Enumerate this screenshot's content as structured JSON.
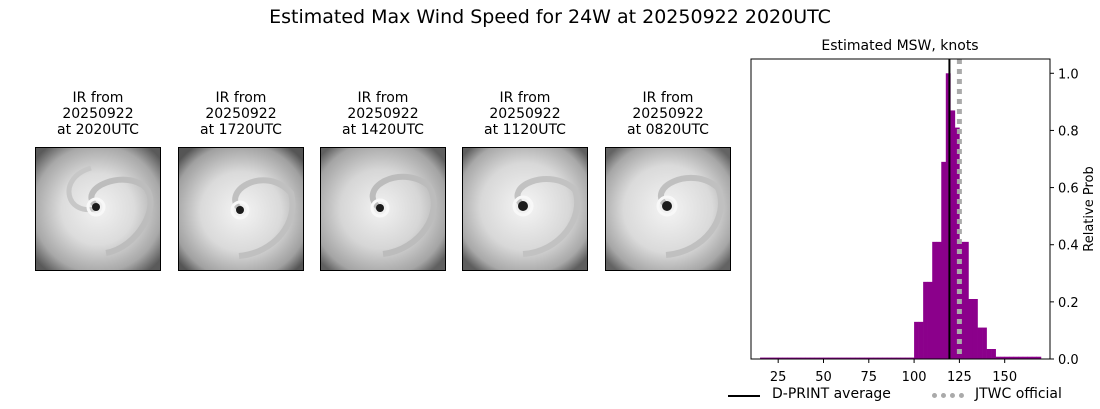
{
  "title": "Estimated Max Wind Speed for 24W at 20250922 2020UTC",
  "panels": [
    {
      "line1": "IR from",
      "line2": "20250922",
      "line3": "at 2020UTC"
    },
    {
      "line1": "IR from",
      "line2": "20250922",
      "line3": "at 1720UTC"
    },
    {
      "line1": "IR from",
      "line2": "20250922",
      "line3": "at 1420UTC"
    },
    {
      "line1": "IR from",
      "line2": "20250922",
      "line3": "at 1120UTC"
    },
    {
      "line1": "IR from",
      "line2": "20250922",
      "line3": "at 0820UTC"
    }
  ],
  "chart_data": {
    "type": "bar",
    "title": "Estimated MSW, knots",
    "xlabel": "",
    "ylabel": "Relative Prob",
    "xlim": [
      10,
      175
    ],
    "ylim": [
      0,
      1.05
    ],
    "xticks": [
      25,
      50,
      75,
      100,
      125,
      150
    ],
    "yticks": [
      0.0,
      0.2,
      0.4,
      0.6,
      0.8,
      1.0
    ],
    "ytick_labels": [
      "0.0",
      "0.2",
      "0.4",
      "0.6",
      "0.8",
      "1.0"
    ],
    "bin_width": 2.5,
    "bins": [
      {
        "x": 15,
        "y": 0.005
      },
      {
        "x": 17.5,
        "y": 0.005
      },
      {
        "x": 20,
        "y": 0.005
      },
      {
        "x": 22.5,
        "y": 0.005
      },
      {
        "x": 25,
        "y": 0.005
      },
      {
        "x": 27.5,
        "y": 0.005
      },
      {
        "x": 30,
        "y": 0.005
      },
      {
        "x": 32.5,
        "y": 0.005
      },
      {
        "x": 35,
        "y": 0.005
      },
      {
        "x": 37.5,
        "y": 0.005
      },
      {
        "x": 40,
        "y": 0.005
      },
      {
        "x": 42.5,
        "y": 0.005
      },
      {
        "x": 45,
        "y": 0.005
      },
      {
        "x": 47.5,
        "y": 0.005
      },
      {
        "x": 50,
        "y": 0.005
      },
      {
        "x": 52.5,
        "y": 0.005
      },
      {
        "x": 55,
        "y": 0.005
      },
      {
        "x": 57.5,
        "y": 0.005
      },
      {
        "x": 60,
        "y": 0.005
      },
      {
        "x": 62.5,
        "y": 0.005
      },
      {
        "x": 65,
        "y": 0.005
      },
      {
        "x": 67.5,
        "y": 0.005
      },
      {
        "x": 70,
        "y": 0.005
      },
      {
        "x": 72.5,
        "y": 0.005
      },
      {
        "x": 75,
        "y": 0.005
      },
      {
        "x": 77.5,
        "y": 0.005
      },
      {
        "x": 80,
        "y": 0.005
      },
      {
        "x": 82.5,
        "y": 0.005
      },
      {
        "x": 85,
        "y": 0.005
      },
      {
        "x": 87.5,
        "y": 0.005
      },
      {
        "x": 90,
        "y": 0.005
      },
      {
        "x": 92.5,
        "y": 0.005
      },
      {
        "x": 95,
        "y": 0.005
      },
      {
        "x": 97.5,
        "y": 0.005
      },
      {
        "x": 100,
        "y": 0.13
      },
      {
        "x": 102.5,
        "y": 0.13
      },
      {
        "x": 105,
        "y": 0.27
      },
      {
        "x": 107.5,
        "y": 0.27
      },
      {
        "x": 110,
        "y": 0.41
      },
      {
        "x": 112.5,
        "y": 0.41
      },
      {
        "x": 115,
        "y": 0.69
      },
      {
        "x": 117.5,
        "y": 1.0
      },
      {
        "x": 120,
        "y": 0.87
      },
      {
        "x": 122.5,
        "y": 0.81
      },
      {
        "x": 125,
        "y": 0.41
      },
      {
        "x": 127.5,
        "y": 0.41
      },
      {
        "x": 130,
        "y": 0.21
      },
      {
        "x": 132.5,
        "y": 0.21
      },
      {
        "x": 135,
        "y": 0.11
      },
      {
        "x": 137.5,
        "y": 0.11
      },
      {
        "x": 140,
        "y": 0.035
      },
      {
        "x": 142.5,
        "y": 0.035
      },
      {
        "x": 145,
        "y": 0.008
      },
      {
        "x": 147.5,
        "y": 0.008
      },
      {
        "x": 150,
        "y": 0.008
      },
      {
        "x": 152.5,
        "y": 0.008
      },
      {
        "x": 155,
        "y": 0.008
      },
      {
        "x": 157.5,
        "y": 0.008
      },
      {
        "x": 160,
        "y": 0.008
      },
      {
        "x": 162.5,
        "y": 0.008
      },
      {
        "x": 165,
        "y": 0.008
      },
      {
        "x": 167.5,
        "y": 0.008
      }
    ],
    "bar_color": "#8b008b",
    "lines": [
      {
        "name": "D-PRINT average",
        "x": 119.5,
        "color": "#000000",
        "style": "solid"
      },
      {
        "name": "JTWC official",
        "x": 125,
        "color": "#aaaaaa",
        "style": "dotted"
      }
    ],
    "legend_position": "bottom"
  }
}
